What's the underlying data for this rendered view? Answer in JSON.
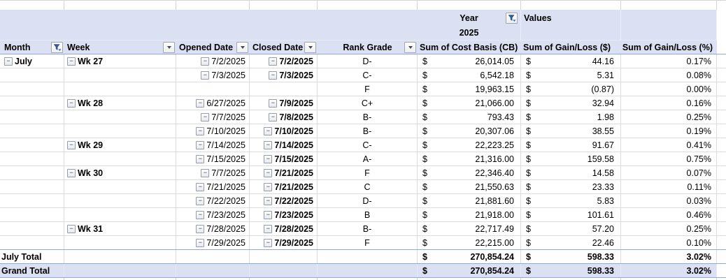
{
  "pivot": {
    "currency_symbol": "$",
    "filter_band": {
      "year_label": "Year",
      "year_value": "2025",
      "values_label": "Values"
    },
    "columns": [
      {
        "label": "Month",
        "filter": "funnel"
      },
      {
        "label": "Week",
        "filter": "dropdown"
      },
      {
        "label": "Opened Date",
        "filter": "dropdown"
      },
      {
        "label": "Closed Date",
        "filter": "dropdown"
      },
      {
        "label": "Rank Grade",
        "filter": "dropdown"
      },
      {
        "label": "Sum of Cost Basis (CB)",
        "filter": "none"
      },
      {
        "label": "Sum of Gain/Loss ($)",
        "filter": "none"
      },
      {
        "label": "Sum of Gain/Loss (%)",
        "filter": "none"
      }
    ],
    "rows": [
      {
        "month": "July",
        "week": "Wk 27",
        "opened": "7/2/2025",
        "closed": "7/2/2025",
        "grade": "D-",
        "cost_basis": "26,014.05",
        "gain_usd": "44.16",
        "gain_pct": "0.17%"
      },
      {
        "month": "",
        "week": "",
        "opened": "7/3/2025",
        "closed": "7/3/2025",
        "grade": "C-",
        "cost_basis": "6,542.18",
        "gain_usd": "5.31",
        "gain_pct": "0.08%"
      },
      {
        "month": "",
        "week": "",
        "opened": "",
        "closed": "",
        "grade": "F",
        "cost_basis": "19,963.15",
        "gain_usd": "(0.87)",
        "gain_pct": "0.00%"
      },
      {
        "month": "",
        "week": "Wk 28",
        "opened": "6/27/2025",
        "closed": "7/9/2025",
        "grade": "C+",
        "cost_basis": "21,066.00",
        "gain_usd": "32.94",
        "gain_pct": "0.16%"
      },
      {
        "month": "",
        "week": "",
        "opened": "7/7/2025",
        "closed": "7/8/2025",
        "grade": "B-",
        "cost_basis": "793.43",
        "gain_usd": "1.98",
        "gain_pct": "0.25%"
      },
      {
        "month": "",
        "week": "",
        "opened": "7/10/2025",
        "closed": "7/10/2025",
        "grade": "B-",
        "cost_basis": "20,307.06",
        "gain_usd": "38.55",
        "gain_pct": "0.19%"
      },
      {
        "month": "",
        "week": "Wk 29",
        "opened": "7/14/2025",
        "closed": "7/14/2025",
        "grade": "C-",
        "cost_basis": "22,223.25",
        "gain_usd": "91.67",
        "gain_pct": "0.41%"
      },
      {
        "month": "",
        "week": "",
        "opened": "7/15/2025",
        "closed": "7/15/2025",
        "grade": "A-",
        "cost_basis": "21,316.00",
        "gain_usd": "159.58",
        "gain_pct": "0.75%"
      },
      {
        "month": "",
        "week": "Wk 30",
        "opened": "7/7/2025",
        "closed": "7/21/2025",
        "grade": "F",
        "cost_basis": "22,346.40",
        "gain_usd": "14.58",
        "gain_pct": "0.07%"
      },
      {
        "month": "",
        "week": "",
        "opened": "7/21/2025",
        "closed": "7/21/2025",
        "grade": "C",
        "cost_basis": "21,550.63",
        "gain_usd": "23.33",
        "gain_pct": "0.11%"
      },
      {
        "month": "",
        "week": "",
        "opened": "7/22/2025",
        "closed": "7/22/2025",
        "grade": "D-",
        "cost_basis": "21,881.60",
        "gain_usd": "5.83",
        "gain_pct": "0.03%"
      },
      {
        "month": "",
        "week": "",
        "opened": "7/23/2025",
        "closed": "7/23/2025",
        "grade": "B",
        "cost_basis": "21,918.00",
        "gain_usd": "101.61",
        "gain_pct": "0.46%"
      },
      {
        "month": "",
        "week": "Wk 31",
        "opened": "7/28/2025",
        "closed": "7/28/2025",
        "grade": "B-",
        "cost_basis": "22,717.49",
        "gain_usd": "57.20",
        "gain_pct": "0.25%"
      },
      {
        "month": "",
        "week": "",
        "opened": "7/29/2025",
        "closed": "7/29/2025",
        "grade": "F",
        "cost_basis": "22,215.00",
        "gain_usd": "22.46",
        "gain_pct": "0.10%"
      }
    ],
    "totals": [
      {
        "label": "July Total",
        "cost_basis": "270,854.24",
        "gain_usd": "598.33",
        "gain_pct": "3.02%"
      },
      {
        "label": "Grand Total",
        "cost_basis": "270,854.24",
        "gain_usd": "598.33",
        "gain_pct": "3.02%"
      }
    ]
  },
  "icons": {
    "month_filter": "funnel-icon",
    "year_filter": "funnel-icon",
    "column_dropdown": "chevron-down-icon",
    "row_collapse": "minus-box-icon"
  },
  "colors": {
    "band_fill": "#dbe1f2",
    "accent_border": "#8ea9db",
    "gridline": "#dcdcdc",
    "text": "#000000"
  }
}
